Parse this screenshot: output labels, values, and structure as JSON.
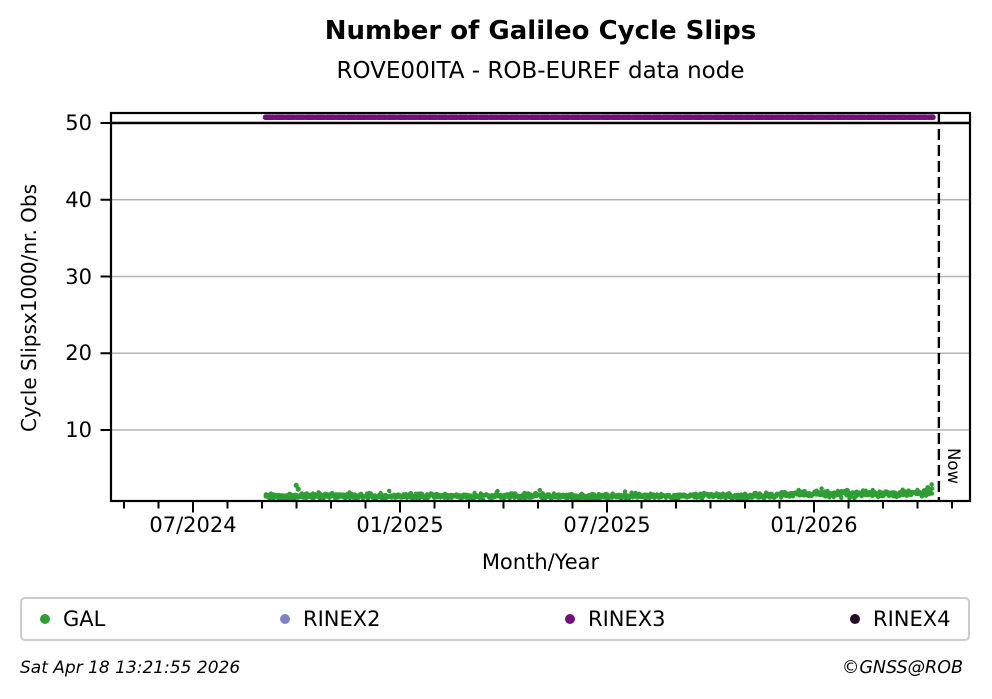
{
  "footer": {
    "timestamp": "Sat Apr 18 13:21:55 2026",
    "credit": "©GNSS@ROB"
  },
  "legend": {
    "items": [
      {
        "label": "GAL",
        "color": "#2f9e35"
      },
      {
        "label": "RINEX2",
        "color": "#7f81c6"
      },
      {
        "label": "RINEX3",
        "color": "#730f7d"
      },
      {
        "label": "RINEX4",
        "color": "#230b28"
      }
    ]
  },
  "chart_data": {
    "type": "scatter",
    "title": "Number of Galileo Cycle Slips",
    "subtitle": "ROVE00ITA - ROB-EUREF data node",
    "xlabel": "Month/Year",
    "ylabel": "Cycle Slipsx1000/nr. Obs",
    "x_tick_labels": [
      "07/2024",
      "01/2025",
      "07/2025",
      "01/2026"
    ],
    "x_tick_months": [
      0,
      6,
      12,
      18
    ],
    "x_minor_tick_every_months": 1,
    "xlim_months": [
      -2.41,
      22.55
    ],
    "y_ticks": [
      50,
      40,
      30,
      20,
      10
    ],
    "y_tick_labels": [
      "50",
      "40",
      "30",
      "20",
      "10"
    ],
    "ylim": [
      0.62,
      51.43
    ],
    "grid": "horizontal-gray",
    "grid_color": "#b3b3b3",
    "reference_line": {
      "y": 50,
      "color": "#000000"
    },
    "now_line": {
      "x_months": 21.62,
      "label": "Now",
      "style": "dashed-black"
    },
    "series": [
      {
        "name": "GAL",
        "type": "scatter-band",
        "color": "#2f9e35",
        "x_months_range": [
          2.1,
          21.45
        ],
        "segments": [
          {
            "from": 2.1,
            "to": 16.95,
            "mean": 1.4,
            "spread": 0.55
          },
          {
            "from": 16.95,
            "to": 21.2,
            "mean": 1.7,
            "spread": 0.65
          },
          {
            "from": 21.2,
            "to": 21.45,
            "mean": 1.9,
            "spread": 0.6
          }
        ],
        "notable_points": [
          {
            "x_months": 2.99,
            "value": 2.8
          },
          {
            "x_months": 3.05,
            "value": 2.3
          },
          {
            "x_months": 21.3,
            "value": 2.5
          }
        ]
      },
      {
        "name": "RINEX2",
        "type": "scatter",
        "color": "#7f81c6",
        "points": []
      },
      {
        "name": "RINEX3",
        "type": "thick-dotted-line",
        "color": "#730f7d",
        "constant_value": 50.75,
        "x_months_range": [
          2.1,
          21.45
        ]
      },
      {
        "name": "RINEX4",
        "type": "scatter",
        "color": "#230b28",
        "points": []
      }
    ]
  }
}
